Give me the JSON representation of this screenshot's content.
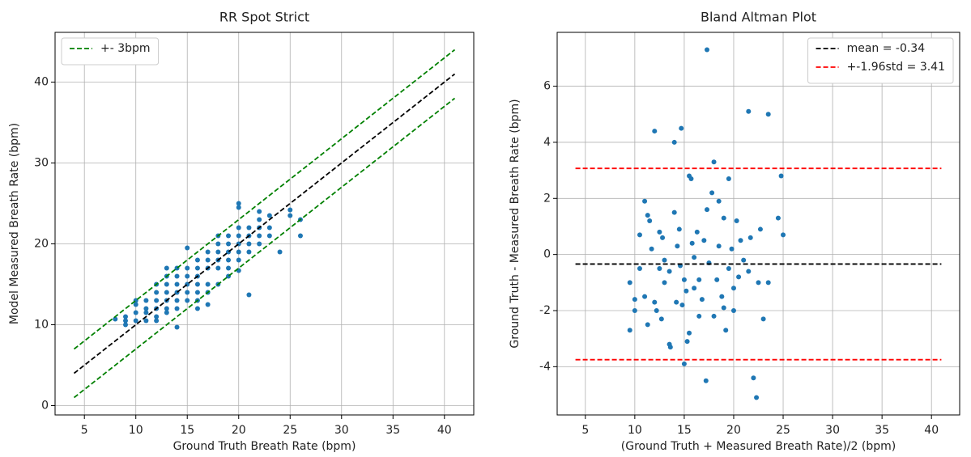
{
  "chart_data": [
    {
      "type": "scatter",
      "title": "RR Spot Strict",
      "xlabel": "Ground Truth Breath Rate (bpm)",
      "ylabel": "Model Measured Breath Rate (bpm)",
      "xlim": [
        2.15,
        42.85
      ],
      "ylim": [
        -1.15,
        46.15
      ],
      "xticks": [
        5,
        10,
        15,
        20,
        25,
        30,
        35,
        40
      ],
      "yticks": [
        0,
        10,
        20,
        30,
        40
      ],
      "grid": true,
      "legend": "upper left",
      "series": [
        {
          "color": "#1f77b4",
          "x": [
            8,
            9,
            9,
            9,
            10,
            10,
            10,
            10,
            11,
            11,
            11,
            11,
            12,
            12,
            12,
            12,
            12,
            12,
            13,
            13,
            13,
            13,
            13,
            13,
            13,
            14,
            14,
            14,
            14,
            14,
            14,
            14,
            15,
            15,
            15,
            15,
            15,
            15,
            16,
            16,
            16,
            16,
            16,
            16,
            16,
            17,
            17,
            17,
            17,
            17,
            17,
            18,
            18,
            18,
            18,
            18,
            18,
            19,
            19,
            19,
            19,
            19,
            19,
            20,
            20,
            20,
            20,
            20,
            20,
            20,
            20,
            21,
            21,
            21,
            21,
            21,
            22,
            22,
            22,
            22,
            22,
            23,
            23,
            23,
            24,
            25,
            25,
            26,
            26
          ],
          "values": [
            10.7,
            10,
            10.5,
            11,
            10.5,
            11.5,
            12.5,
            13,
            10.5,
            11.5,
            12,
            13,
            10.5,
            11,
            12,
            13,
            14,
            15,
            11.5,
            12,
            13,
            14,
            15,
            16,
            17,
            9.7,
            12,
            13,
            14,
            15,
            16,
            17,
            13,
            14,
            15,
            16,
            17,
            19.5,
            12,
            13,
            14,
            15,
            16,
            17,
            18,
            12.5,
            14,
            15,
            17,
            18,
            19,
            15,
            17,
            18,
            19,
            20,
            21,
            16,
            17,
            18,
            19,
            20,
            21,
            16.7,
            18,
            19,
            20,
            21,
            22,
            24.5,
            25,
            13.7,
            19,
            20,
            21,
            22,
            20,
            21,
            22,
            23,
            24,
            21,
            22,
            23.5,
            19,
            23.5,
            24.2,
            21,
            23
          ]
        }
      ],
      "lines": [
        {
          "name": "+- 3bpm",
          "color": "green",
          "x": [
            4,
            41
          ],
          "values": [
            7,
            44
          ]
        },
        {
          "color": "green",
          "x": [
            4,
            41
          ],
          "values": [
            1,
            38
          ]
        },
        {
          "color": "black",
          "x": [
            4,
            41
          ],
          "values": [
            4,
            41
          ]
        }
      ]
    },
    {
      "type": "scatter",
      "title": "Bland Altman Plot",
      "xlabel": "(Ground Truth + Measured Breath Rate)/2 (bpm)",
      "ylabel": "Ground Truth - Measured Breath Rate (bpm)",
      "xlim": [
        2.15,
        42.85
      ],
      "ylim": [
        -5.72,
        7.92
      ],
      "xticks": [
        5,
        10,
        15,
        20,
        25,
        30,
        35,
        40
      ],
      "yticks": [
        -4,
        -2,
        0,
        2,
        4,
        6
      ],
      "grid": true,
      "legend": "upper right",
      "series": [
        {
          "color": "#1f77b4",
          "x": [
            9.5,
            9.5,
            10,
            10,
            10.5,
            10.5,
            11,
            11,
            11.3,
            11.5,
            11.3,
            11.7,
            12,
            12,
            12.2,
            12.5,
            12.5,
            12.8,
            13,
            13,
            13.5,
            13.6,
            13.5,
            14,
            14,
            14.2,
            14.3,
            14.5,
            14.7,
            14.8,
            15,
            15,
            15.2,
            15.3,
            15.5,
            15.7,
            15.5,
            15.8,
            16,
            16,
            16.3,
            16.5,
            16.5,
            17,
            17.3,
            17.2,
            17.3,
            17.5,
            17.8,
            18,
            18,
            18.3,
            18.5,
            18.5,
            19,
            19,
            19.2,
            19.5,
            19.5,
            19.8,
            20,
            20,
            20.3,
            20.5,
            20.7,
            21,
            21.5,
            21.5,
            21.7,
            22,
            22.3,
            22.5,
            23,
            23.5,
            23.5,
            24.5,
            24.8,
            25,
            22.7,
            18.8,
            16.8,
            14.6,
            12.7
          ],
          "values": [
            -2.7,
            -1,
            -1.6,
            -2,
            0.7,
            -0.5,
            1.9,
            -1.5,
            1.4,
            1.2,
            -2.5,
            0.2,
            4.4,
            -1.7,
            -2,
            0.8,
            -0.5,
            0.6,
            -0.2,
            -1,
            -3.2,
            -3.3,
            -0.6,
            4,
            1.5,
            -1.7,
            0.3,
            0.9,
            4.5,
            -1.8,
            -3.9,
            -0.9,
            -1.3,
            -3.1,
            2.8,
            2.7,
            -2.8,
            0.4,
            -0.1,
            -1.2,
            0.8,
            -2.2,
            -0.9,
            0.5,
            7.3,
            -4.5,
            1.6,
            -0.3,
            2.2,
            -2.2,
            3.3,
            -0.9,
            1.9,
            0.3,
            -1.9,
            1.3,
            -2.7,
            2.7,
            -0.5,
            0.2,
            -1.2,
            -2,
            1.2,
            -0.8,
            0.5,
            -0.2,
            5.1,
            -0.6,
            0.6,
            -4.4,
            -5.1,
            -1,
            -2.3,
            5,
            -1,
            1.3,
            2.8,
            0.7,
            0.9,
            -1.5,
            -1.6,
            -0.4,
            -2.3
          ]
        }
      ],
      "lines": [
        {
          "name": "mean = -0.34",
          "color": "black",
          "x": [
            4,
            41
          ],
          "values": [
            -0.34,
            -0.34
          ]
        },
        {
          "name": "+-1.96std = 3.41",
          "color": "red",
          "x": [
            4,
            41
          ],
          "values": [
            3.07,
            3.07
          ]
        },
        {
          "color": "red",
          "x": [
            4,
            41
          ],
          "values": [
            -3.75,
            -3.75
          ]
        }
      ]
    }
  ]
}
